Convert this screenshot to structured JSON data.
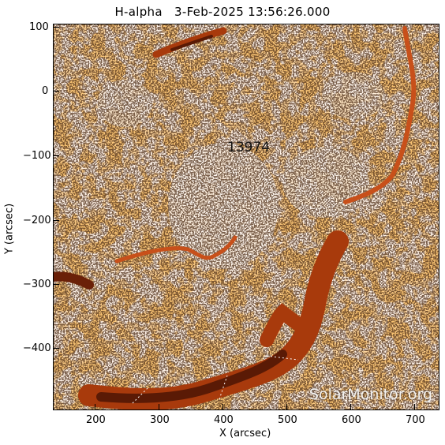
{
  "title": "H-alpha   3-Feb-2025 13:56:26.000",
  "region_label": "13974",
  "watermark": "SolarMonitor.org",
  "x_axis": {
    "label": "X (arcsec)",
    "ticks": [
      "200",
      "300",
      "400",
      "500",
      "600",
      "700"
    ]
  },
  "y_axis": {
    "label": "Y (arcsec)",
    "ticks": [
      "100",
      "0",
      "−100",
      "−200",
      "−300",
      "−400"
    ]
  },
  "colors": {
    "background": "#fff3e9",
    "plage": "#f58a2a",
    "filament": "#a83a0c",
    "filament_dark": "#5a1a05",
    "grain": "#1a0a04"
  }
}
